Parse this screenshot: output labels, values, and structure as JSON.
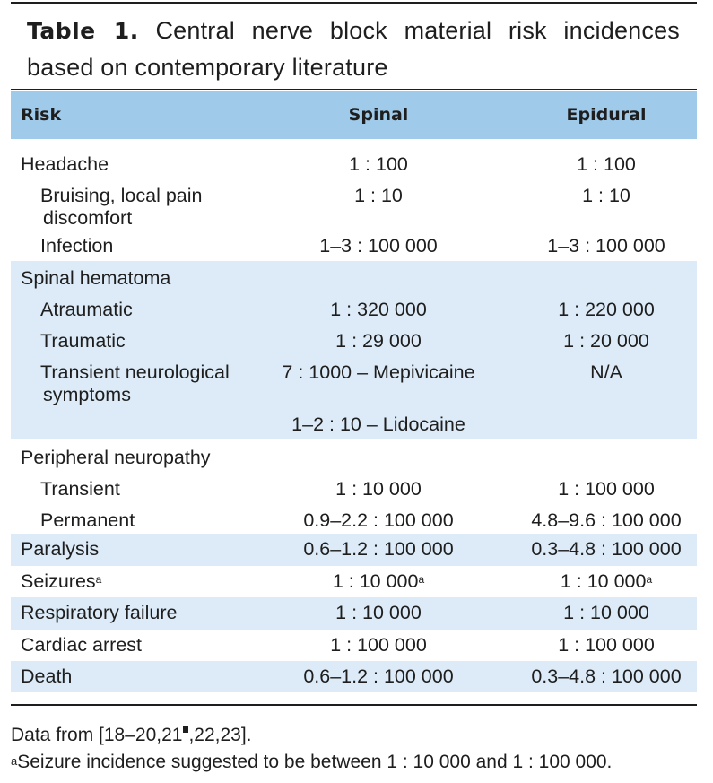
{
  "table": {
    "label": "Table 1.",
    "caption": "Central nerve block material risk incidences based on contemporary literature",
    "columns": [
      "Risk",
      "Spinal",
      "Epidural"
    ],
    "rows": [
      {
        "risk": "Headache",
        "spinal": "1 : 100",
        "epidural": "1 : 100"
      },
      {
        "risk_lines": [
          "Bruising, local pain",
          "discomfort"
        ],
        "spinal": "1 : 10",
        "epidural": "1 : 10"
      },
      {
        "risk": "Infection",
        "spinal": "1–3 : 100 000",
        "epidural": "1–3 : 100 000"
      },
      {
        "risk": "Spinal hematoma"
      },
      {
        "risk": "Atraumatic",
        "spinal": "1 : 320 000",
        "epidural": "1 : 220 000"
      },
      {
        "risk": "Traumatic",
        "spinal": "1 : 29 000",
        "epidural": "1 : 20 000"
      },
      {
        "risk_lines": [
          "Transient neurological",
          "symptoms"
        ],
        "spinal_lines": [
          "7 : 1000 – Mepivicaine",
          "1–2 : 10 – Lidocaine"
        ],
        "epidural": "N/A"
      },
      {
        "risk": "Peripheral neuropathy"
      },
      {
        "risk": "Transient",
        "spinal": "1 : 10 000",
        "epidural": "1 : 100 000"
      },
      {
        "risk": "Permanent",
        "spinal": "0.9–2.2 : 100 000",
        "epidural": "4.8–9.6 : 100 000"
      },
      {
        "risk": "Paralysis",
        "spinal": "0.6–1.2 : 100 000",
        "epidural": "0.3–4.8 : 100 000"
      },
      {
        "risk": "Seizures",
        "risk_sup": "a",
        "spinal": "1 : 10 000",
        "spinal_sup": "a",
        "epidural": "1 : 10 000",
        "epidural_sup": "a"
      },
      {
        "risk": "Respiratory failure",
        "spinal": "1 : 10 000",
        "epidural": "1 : 10 000"
      },
      {
        "risk": "Cardiac arrest",
        "spinal": "1 : 100 000",
        "epidural": "1 : 100 000"
      },
      {
        "risk": "Death",
        "spinal": "0.6–1.2 : 100 000",
        "epidural": "0.3–4.8 : 100 000"
      }
    ]
  },
  "notes": {
    "source_pre": "Data from [18–20,21",
    "source_post": ",22,23].",
    "footnote_mark": "a",
    "footnote": "Seizure incidence suggested to be between 1 : 10 000 and 1 : 100 000."
  }
}
